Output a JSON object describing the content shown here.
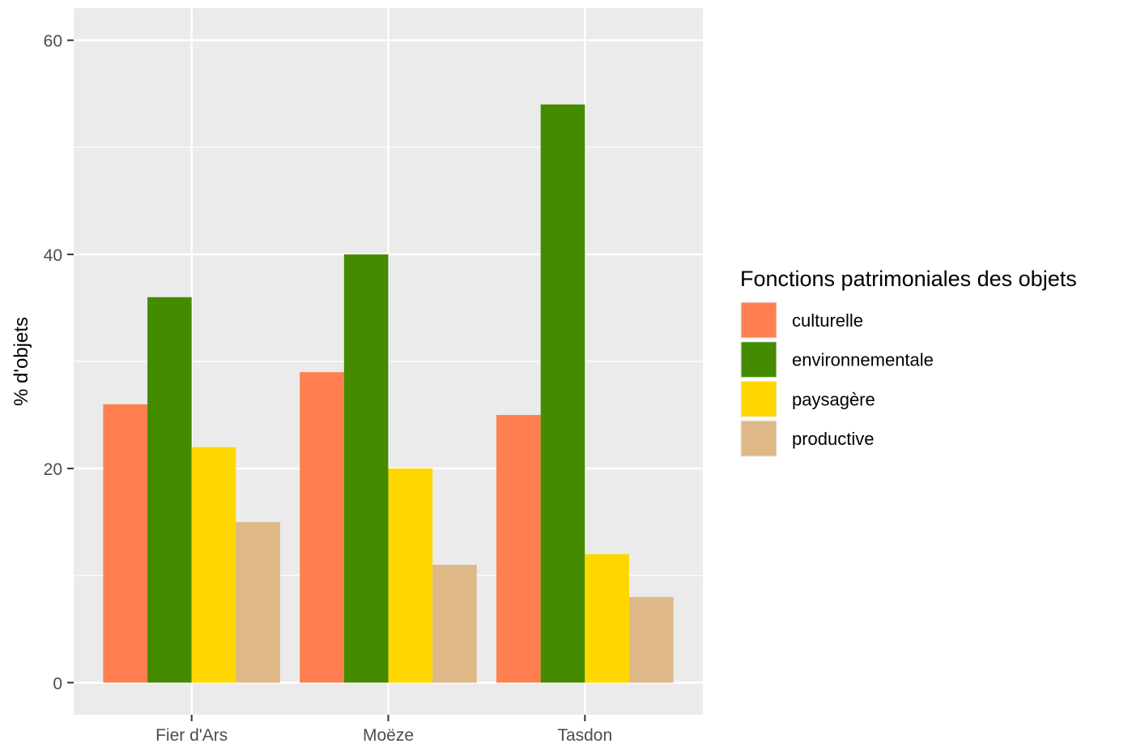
{
  "chart_data": {
    "type": "bar",
    "title": "",
    "xlabel": "",
    "ylabel": "% d'objets",
    "categories": [
      "Fier d'Ars",
      "Moëze",
      "Tasdon"
    ],
    "series": [
      {
        "name": "culturelle",
        "color": "#FF7F50",
        "values": [
          26,
          29,
          25
        ]
      },
      {
        "name": "environnementale",
        "color": "#458B00",
        "values": [
          36,
          40,
          54
        ]
      },
      {
        "name": "paysagère",
        "color": "#FFD700",
        "values": [
          22,
          20,
          12
        ]
      },
      {
        "name": "productive",
        "color": "#DEB887",
        "values": [
          15,
          11,
          8
        ]
      }
    ],
    "ylim": [
      -3,
      63
    ],
    "y_ticks": [
      0,
      20,
      40,
      60
    ],
    "y_minor_ticks": [
      10,
      30,
      50
    ],
    "grid": true,
    "panel_background": "#EBEBEB",
    "legend": {
      "title": "Fonctions patrimoniales des objets",
      "placement": "right"
    }
  }
}
